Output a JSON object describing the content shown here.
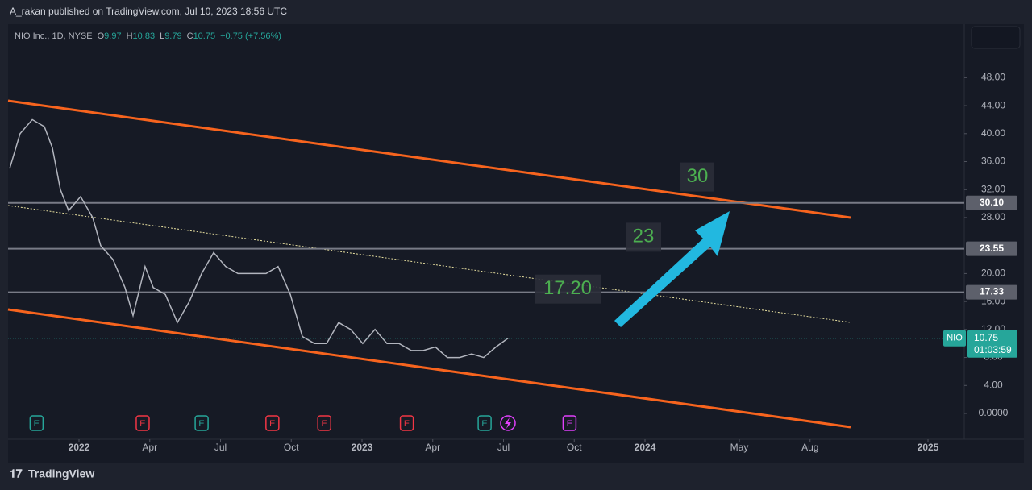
{
  "header": {
    "publisher": "A_rakan published on TradingView.com, Jul 10, 2023 18:56 UTC"
  },
  "legend": {
    "symbol": "NIO Inc., 1D, NYSE",
    "o_label": "O",
    "open": "9.97",
    "h_label": "H",
    "high": "10.83",
    "l_label": "L",
    "low": "9.79",
    "c_label": "C",
    "close": "10.75",
    "change": "+0.75 (+7.56%)"
  },
  "chart_data": {
    "type": "line",
    "color": "#b2b5be",
    "x": [
      -2.94,
      -2.5,
      -1.98,
      -1.47,
      -1.13,
      -0.79,
      -0.44,
      0.07,
      0.58,
      0.92,
      1.44,
      1.95,
      2.29,
      2.8,
      3.15,
      3.66,
      4.17,
      4.68,
      5.2,
      5.71,
      6.22,
      6.74,
      7.25,
      7.93,
      8.44,
      8.96,
      9.47,
      9.98,
      10.5,
      11.01,
      11.52,
      12.03,
      12.55,
      13.06,
      13.57,
      14.09,
      14.6,
      15.11,
      15.62,
      16.14,
      16.65,
      17.16,
      17.68,
      18.19
    ],
    "values": [
      35,
      40,
      42,
      41,
      38,
      32,
      29,
      31,
      28,
      24,
      22,
      18,
      14,
      21,
      18,
      17,
      13,
      16,
      20,
      23,
      21,
      20,
      20,
      20,
      21,
      17,
      11,
      10,
      10,
      13,
      12,
      10,
      12,
      10,
      10,
      9,
      9,
      9.5,
      8,
      8,
      8.5,
      8,
      9.5,
      10.75
    ],
    "xlim": [
      -3.0,
      37.5
    ],
    "ylim": [
      -1.5,
      57.5
    ],
    "xticks": [
      {
        "value": 0,
        "label": "2022"
      },
      {
        "value": 3,
        "label": "Apr"
      },
      {
        "value": 6,
        "label": "Jul"
      },
      {
        "value": 9,
        "label": "Oct"
      },
      {
        "value": 12,
        "label": "2023"
      },
      {
        "value": 15,
        "label": "Apr"
      },
      {
        "value": 18,
        "label": "Jul"
      },
      {
        "value": 21,
        "label": "Oct"
      },
      {
        "value": 24,
        "label": "2024"
      },
      {
        "value": 28,
        "label": "May"
      },
      {
        "value": 31,
        "label": "Aug"
      },
      {
        "value": 36,
        "label": "2025"
      }
    ],
    "yticks": [
      {
        "value": 0,
        "label": "0.0000"
      },
      {
        "value": 4,
        "label": "4.00"
      },
      {
        "value": 8,
        "label": "8.00"
      },
      {
        "value": 12,
        "label": "12.00"
      },
      {
        "value": 16,
        "label": "16.00"
      },
      {
        "value": 20,
        "label": "20.00"
      },
      {
        "value": 28,
        "label": "28.00"
      },
      {
        "value": 32,
        "label": "32.00"
      },
      {
        "value": 36,
        "label": "36.00"
      },
      {
        "value": 40,
        "label": "40.00"
      },
      {
        "value": 44,
        "label": "44.00"
      },
      {
        "value": 48,
        "label": "48.00"
      }
    ],
    "levels": [
      {
        "value": 30.1,
        "label": "30.10"
      },
      {
        "value": 23.55,
        "label": "23.55"
      },
      {
        "value": 17.33,
        "label": "17.33"
      }
    ],
    "last_price": {
      "symbol": "NIO",
      "value": 10.75,
      "label": "10.75",
      "countdown": "01:03:59"
    },
    "annotations": [
      {
        "text": "30",
        "value": 30
      },
      {
        "text": "23",
        "value": 23
      },
      {
        "text": "17.20",
        "value": 17.2
      }
    ],
    "events": [
      {
        "x": -1.8,
        "label": "E",
        "kind": "green"
      },
      {
        "x": 2.7,
        "label": "E",
        "kind": "red"
      },
      {
        "x": 5.2,
        "label": "E",
        "kind": "green"
      },
      {
        "x": 8.2,
        "label": "E",
        "kind": "red"
      },
      {
        "x": 10.4,
        "label": "E",
        "kind": "red"
      },
      {
        "x": 13.9,
        "label": "E",
        "kind": "red"
      },
      {
        "x": 17.2,
        "label": "E",
        "kind": "green"
      },
      {
        "x": 20.8,
        "label": "E",
        "kind": "purple"
      }
    ]
  },
  "footer": {
    "brand": "TradingView"
  }
}
